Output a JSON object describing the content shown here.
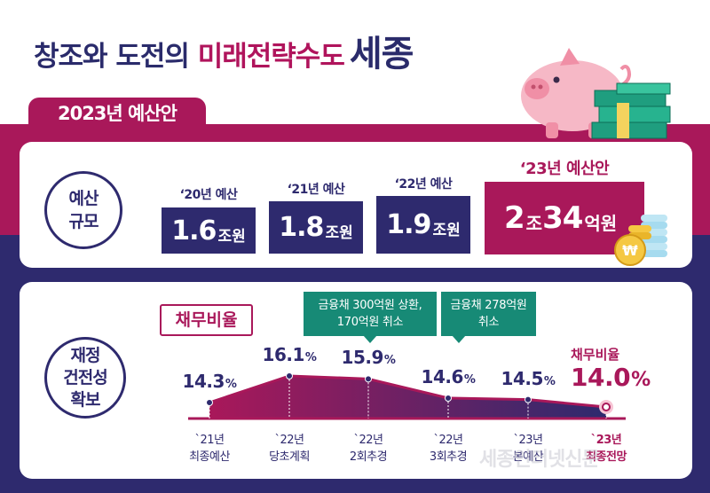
{
  "header": {
    "title_part1": "창조와 도전의 ",
    "title_part2": "미래전략수도",
    "title_part3": "세종"
  },
  "section_tab": "2023년 예산안",
  "budget": {
    "circle_line1": "예산",
    "circle_line2": "규모",
    "items": [
      {
        "label": "‘20년 예산",
        "value": "1.6",
        "unit": "조원"
      },
      {
        "label": "‘21년 예산",
        "value": "1.8",
        "unit": "조원"
      },
      {
        "label": "‘22년 예산",
        "value": "1.9",
        "unit": "조원"
      },
      {
        "label": "‘23년 예산안",
        "value_a": "2",
        "unit_a": "조",
        "value_b": "34",
        "unit_b": "억원"
      }
    ]
  },
  "finance": {
    "circle_line1": "재정",
    "circle_line2": "건전성",
    "circle_line3": "확보",
    "debt_label": "채무비율",
    "callout1_line1": "금융채 300억원 상환,",
    "callout1_line2": "170억원 취소",
    "callout2_line1": "금융채 278억원",
    "callout2_line2": "취소",
    "highlight_caption": "채무비율",
    "pct_sign": "%"
  },
  "chart_data": {
    "type": "area",
    "categories": [
      "`21년 최종예산",
      "`22년 당초계획",
      "`22년 2회추경",
      "`22년 3회추경",
      "`23년 본예산",
      "`23년 최종전망"
    ],
    "x_lines": [
      [
        "`21년",
        "최종예산"
      ],
      [
        "`22년",
        "당초계획"
      ],
      [
        "`22년",
        "2회추경"
      ],
      [
        "`22년",
        "3회추경"
      ],
      [
        "`23년",
        "본예산"
      ],
      [
        "`23년",
        "최종전망"
      ]
    ],
    "values": [
      14.3,
      16.1,
      15.9,
      14.6,
      14.5,
      14.0
    ],
    "value_labels": [
      "14.3",
      "16.1",
      "15.9",
      "14.6",
      "14.5",
      "14.0"
    ],
    "title": "채무비율",
    "ylabel": "",
    "colors": {
      "line": "#a9185a",
      "fill_start": "#a9185a",
      "fill_end": "#2e2a6e"
    }
  },
  "watermark": "세종인터넷신문"
}
